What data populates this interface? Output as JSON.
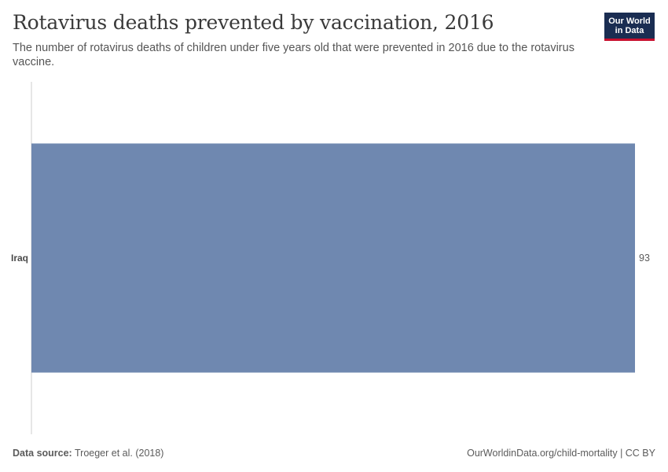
{
  "header": {
    "title": "Rotavirus deaths prevented by vaccination, 2016",
    "subtitle": "The number of rotavirus deaths of children under five years old that were prevented in 2016 due to the rotavirus vaccine.",
    "logo_line1": "Our World",
    "logo_line2": "in Data"
  },
  "footer": {
    "source_label": "Data source:",
    "source_value": "Troeger et al. (2018)",
    "link_text": "OurWorldinData.org/child-mortality | CC BY"
  },
  "colors": {
    "bar": "#6f88b0",
    "axis": "#cccccc",
    "logo_bg": "#1a2d52",
    "logo_accent": "#c8102e"
  },
  "chart_data": {
    "type": "bar",
    "orientation": "horizontal",
    "categories": [
      "Iraq"
    ],
    "values": [
      93
    ],
    "value_labels": [
      "93"
    ],
    "xlim": [
      0,
      93
    ],
    "grid": false,
    "legend": "none"
  }
}
